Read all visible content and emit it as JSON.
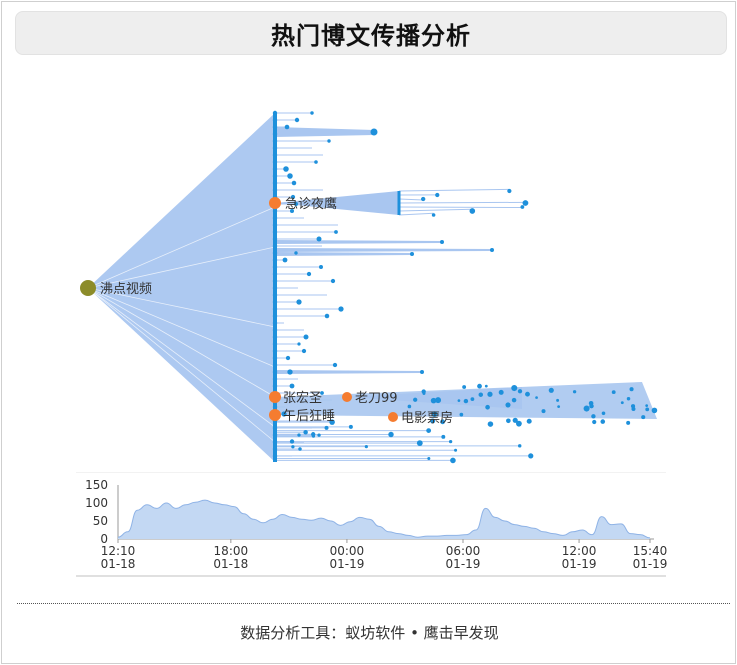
{
  "title": "热门博文传播分析",
  "footer": "数据分析工具：蚁坊软件 • 鹰击早发现",
  "colors": {
    "edge_fill": "#a9c6f0",
    "leaf": "#1e90db",
    "root": "#8c8c2a",
    "key_node": "#f57c30",
    "area_fill": "#c3d8f3",
    "area_line": "#8fb3e6"
  },
  "network": {
    "root": {
      "label": "沸点视频"
    },
    "key_nodes": [
      {
        "label": "急诊夜鹰"
      },
      {
        "label": "张宏圣"
      },
      {
        "label": "老刀99"
      },
      {
        "label": "午后狂睡"
      },
      {
        "label": "电影票房"
      }
    ]
  },
  "chart_data": {
    "type": "area",
    "title": "",
    "xlabel": "",
    "ylabel": "",
    "ylim": [
      0,
      150
    ],
    "yticks": [
      0,
      50,
      100,
      150
    ],
    "xticks": [
      {
        "time": "12:10",
        "date": "01-18"
      },
      {
        "time": "18:00",
        "date": "01-18"
      },
      {
        "time": "00:00",
        "date": "01-19"
      },
      {
        "time": "06:00",
        "date": "01-19"
      },
      {
        "time": "12:00",
        "date": "01-19"
      },
      {
        "time": "15:40",
        "date": "01-19"
      }
    ],
    "series": [
      {
        "x": [
          "01-18 12:10",
          "01-18 12:40",
          "01-18 13:10",
          "01-18 13:40",
          "01-18 14:10",
          "01-18 14:40",
          "01-18 15:10",
          "01-18 15:40",
          "01-18 16:10",
          "01-18 16:40",
          "01-18 17:10",
          "01-18 17:40",
          "01-18 18:10",
          "01-18 18:40",
          "01-18 19:10",
          "01-18 19:40",
          "01-18 20:10",
          "01-18 20:40",
          "01-18 21:10",
          "01-18 21:40",
          "01-18 22:10",
          "01-18 22:40",
          "01-18 23:10",
          "01-18 23:40",
          "01-19 00:10",
          "01-19 00:40",
          "01-19 01:10",
          "01-19 01:40",
          "01-19 02:10",
          "01-19 02:40",
          "01-19 03:10",
          "01-19 03:40",
          "01-19 04:10",
          "01-19 04:40",
          "01-19 05:10",
          "01-19 05:40",
          "01-19 06:10",
          "01-19 06:40",
          "01-19 07:10",
          "01-19 07:40",
          "01-19 08:10",
          "01-19 08:40",
          "01-19 09:10",
          "01-19 09:40",
          "01-19 10:10",
          "01-19 10:40",
          "01-19 11:10",
          "01-19 11:40",
          "01-19 12:10",
          "01-19 12:40",
          "01-19 13:10",
          "01-19 13:40",
          "01-19 14:10",
          "01-19 14:40",
          "01-19 15:10",
          "01-19 15:40"
        ],
        "values": [
          5,
          20,
          80,
          95,
          85,
          100,
          85,
          95,
          102,
          108,
          100,
          95,
          90,
          70,
          55,
          45,
          55,
          68,
          60,
          55,
          52,
          58,
          50,
          38,
          48,
          60,
          55,
          35,
          20,
          15,
          10,
          5,
          8,
          8,
          10,
          10,
          12,
          25,
          85,
          60,
          50,
          40,
          35,
          30,
          20,
          15,
          10,
          20,
          25,
          12,
          62,
          40,
          42,
          15,
          12,
          3
        ]
      }
    ]
  }
}
